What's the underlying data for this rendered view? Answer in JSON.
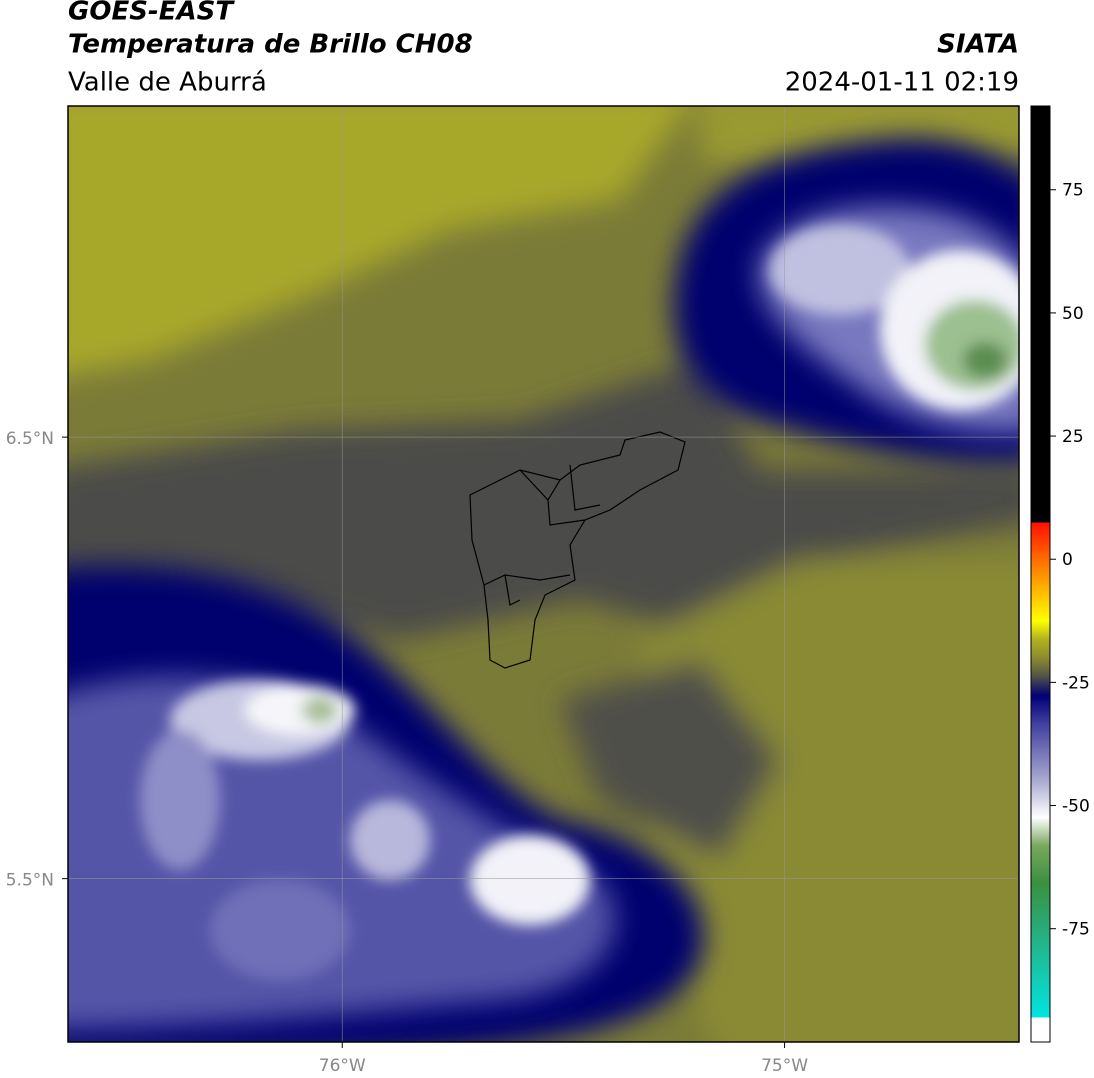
{
  "header": {
    "title": "GOES-EAST",
    "subtitle": "Temperatura de Brillo CH08",
    "region": "Valle de Aburrá",
    "source": "SIATA",
    "datetime": "2024-01-11 02:19"
  },
  "map": {
    "xlim": [
      -76.62,
      -74.47
    ],
    "ylim": [
      5.13,
      7.25
    ],
    "lat_ticks": [
      {
        "value": 6.5,
        "label": "6.5°N"
      },
      {
        "value": 5.5,
        "label": "5.5°N"
      }
    ],
    "lon_ticks": [
      {
        "value": -76,
        "label": "76°W"
      },
      {
        "value": -75,
        "label": "75°W"
      }
    ]
  },
  "colorbar": {
    "range": [
      -98,
      92
    ],
    "ticks": [
      75,
      50,
      25,
      0,
      -25,
      -50,
      -75
    ]
  }
}
